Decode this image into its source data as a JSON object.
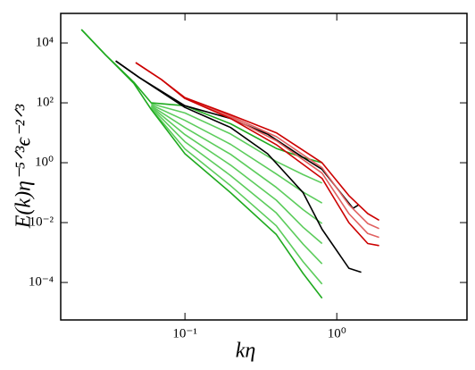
{
  "chart_data": {
    "type": "line",
    "xlabel": "kη",
    "ylabel": "E(k)η⁻⁵ᐟ³ϵ⁻²ᐟ³",
    "xscale": "log",
    "yscale": "log",
    "xlim": [
      0.0152,
      7.2
    ],
    "ylim": [
      5.6e-06,
      97000
    ],
    "xticks": [
      {
        "value": 0.1,
        "label": "10⁻¹"
      },
      {
        "value": 1,
        "label": "10⁰"
      }
    ],
    "yticks": [
      {
        "value": 0.0001,
        "label": "10⁻⁴"
      },
      {
        "value": 0.01,
        "label": "10⁻²"
      },
      {
        "value": 1,
        "label": "10⁰"
      },
      {
        "value": 100,
        "label": "10²"
      },
      {
        "value": 10000,
        "label": "10⁴"
      }
    ],
    "series": [
      {
        "color": "#5ccc5c",
        "x": [
          0.06,
          0.1,
          0.2,
          0.4,
          0.6,
          0.8
        ],
        "values": [
          93,
          46,
          9.1,
          1.1,
          0.4,
          0.21
        ]
      },
      {
        "color": "#5ccc5c",
        "x": [
          0.06,
          0.1,
          0.2,
          0.4,
          0.6,
          0.8
        ],
        "values": [
          85,
          26,
          4.1,
          0.42,
          0.105,
          0.045
        ]
      },
      {
        "color": "#5ccc5c",
        "x": [
          0.06,
          0.1,
          0.2,
          0.4,
          0.6,
          0.8
        ],
        "values": [
          79,
          15,
          1.9,
          0.15,
          0.027,
          0.0093
        ]
      },
      {
        "color": "#5ccc5c",
        "x": [
          0.06,
          0.1,
          0.2,
          0.4,
          0.6,
          0.8
        ],
        "values": [
          74,
          8.7,
          0.83,
          0.056,
          0.007,
          0.002
        ]
      },
      {
        "color": "#5ccc5c",
        "x": [
          0.06,
          0.1,
          0.2,
          0.4,
          0.6,
          0.8
        ],
        "values": [
          69,
          5,
          0.37,
          0.021,
          0.0019,
          0.00042
        ]
      },
      {
        "color": "#5ccc5c",
        "x": [
          0.06,
          0.1,
          0.2,
          0.4,
          0.6,
          0.8
        ],
        "values": [
          63,
          2.9,
          0.17,
          0.0078,
          0.00049,
          8.9e-05
        ]
      },
      {
        "color": "#1faa1f",
        "x": [
          0.0208,
          0.03,
          0.046,
          0.06,
          0.1,
          0.2,
          0.4,
          0.6,
          0.8
        ],
        "values": [
          28000,
          4000,
          490,
          100,
          80,
          20,
          3,
          1.5,
          1
        ]
      },
      {
        "color": "#1faa1f",
        "x": [
          0.0208,
          0.03,
          0.046,
          0.06,
          0.1,
          0.2,
          0.4,
          0.6,
          0.8
        ],
        "values": [
          28000,
          4000,
          450,
          60,
          2,
          0.1,
          0.004,
          0.0002,
          3e-05
        ]
      },
      {
        "color": "#000000",
        "x": [
          0.035,
          0.05,
          0.1,
          0.2,
          0.35,
          0.6,
          0.8,
          1.28,
          1.4
        ],
        "values": [
          2500,
          700,
          80,
          30,
          9,
          1.5,
          0.6,
          0.03,
          0.04
        ]
      },
      {
        "color": "#000000",
        "x": [
          0.035,
          0.05,
          0.1,
          0.2,
          0.35,
          0.6,
          0.8,
          1.2,
          1.45
        ],
        "values": [
          2500,
          700,
          70,
          15,
          2,
          0.1,
          0.006,
          0.0003,
          0.00022
        ]
      },
      {
        "color": "#e06060",
        "x": [
          0.1,
          0.2,
          0.4,
          0.8,
          1.2,
          1.6,
          1.9
        ],
        "values": [
          148,
          36,
          7.4,
          0.68,
          0.04,
          0.0093,
          0.0063
        ]
      },
      {
        "color": "#e06060",
        "x": [
          0.1,
          0.2,
          0.4,
          0.8,
          1.2,
          1.6,
          1.9
        ],
        "values": [
          145,
          33,
          5.4,
          0.45,
          0.02,
          0.0043,
          0.0032
        ]
      },
      {
        "color": "#cc0000",
        "x": [
          0.0474,
          0.07,
          0.1,
          0.2,
          0.4,
          0.8,
          1.2,
          1.6,
          1.9
        ],
        "values": [
          2200,
          600,
          150,
          40,
          10,
          1,
          0.08,
          0.02,
          0.012
        ]
      },
      {
        "color": "#cc0000",
        "x": [
          0.0474,
          0.07,
          0.1,
          0.2,
          0.4,
          0.8,
          1.2,
          1.6,
          1.9
        ],
        "values": [
          2200,
          600,
          140,
          30,
          4,
          0.3,
          0.01,
          0.002,
          0.0017
        ]
      }
    ]
  }
}
